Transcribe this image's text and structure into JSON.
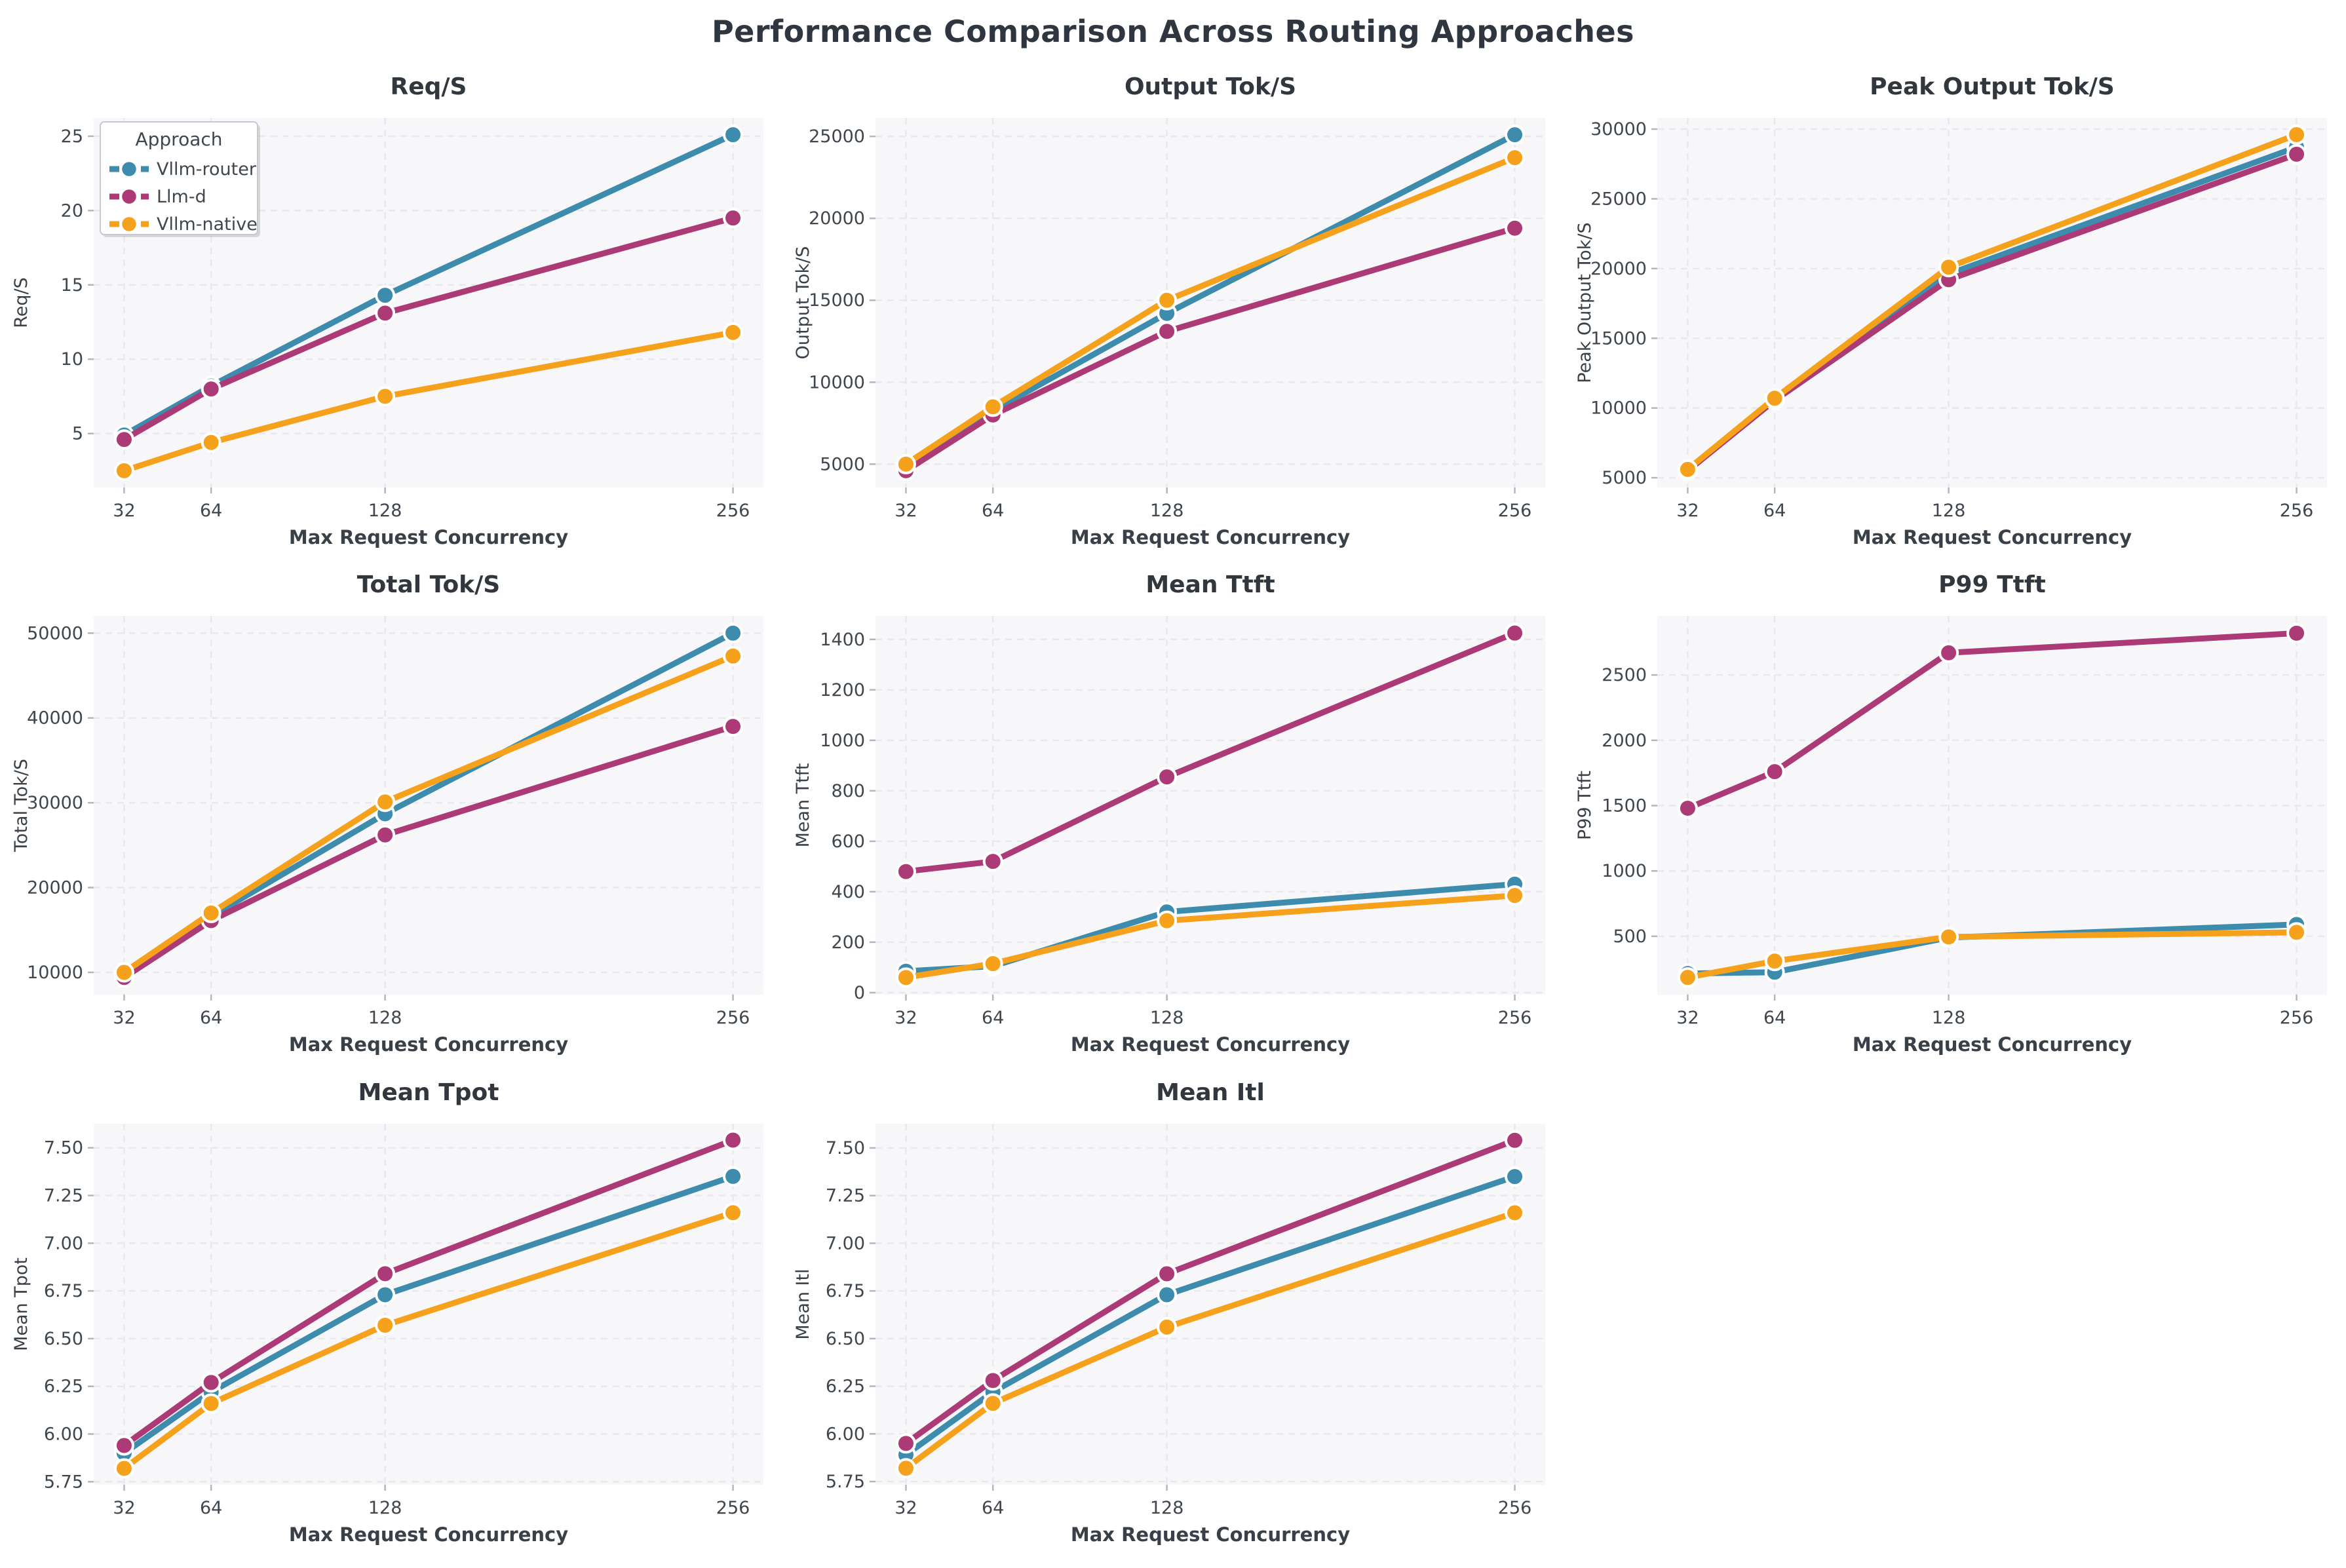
{
  "suptitle": "Performance Comparison Across Routing Approaches",
  "style": {
    "figure_bg": "#ffffff",
    "plot_bg": "#f7f7f9",
    "grid_color": "#e9e9ed",
    "tick_mark_color": "#b2b7bd",
    "title_color": "#31373d",
    "tick_text_color": "#3f464d",
    "label_text_color": "#3a4047",
    "legend_border": "#c6cad0",
    "legend_bg": "#ffffff"
  },
  "series_meta": [
    {
      "name": "Vllm-router",
      "color": "#3d8bad"
    },
    {
      "name": "Llm-d",
      "color": "#ab3a76"
    },
    {
      "name": "Vllm-native",
      "color": "#f5a11c"
    }
  ],
  "legend": {
    "title": "Approach",
    "chart_index": 0
  },
  "x_label": "Max Request Concurrency",
  "x_ticks": [
    32,
    64,
    128,
    256
  ],
  "x_lim": [
    20.8,
    267.2
  ],
  "chart_data": [
    {
      "type": "line",
      "title": "Req/S",
      "ylabel": "Req/S",
      "xlabel": "Max Request Concurrency",
      "x": [
        32,
        64,
        128,
        256
      ],
      "ylim": [
        1.37,
        26.23
      ],
      "yticks": [
        5,
        10,
        15,
        20,
        25
      ],
      "ydecimals": 0,
      "series": [
        {
          "name": "Vllm-router",
          "values": [
            4.9,
            8.2,
            14.3,
            25.1
          ]
        },
        {
          "name": "Llm-d",
          "values": [
            4.6,
            8.0,
            13.1,
            19.5
          ]
        },
        {
          "name": "Vllm-native",
          "values": [
            2.5,
            4.4,
            7.5,
            11.8
          ]
        }
      ]
    },
    {
      "type": "line",
      "title": "Output Tok/S",
      "ylabel": "Output Tok/S",
      "xlabel": "Max Request Concurrency",
      "x": [
        32,
        64,
        128,
        256
      ],
      "ylim": [
        3575,
        26125
      ],
      "yticks": [
        5000,
        10000,
        15000,
        20000,
        25000
      ],
      "ydecimals": 0,
      "series": [
        {
          "name": "Vllm-router",
          "values": [
            4900,
            8250,
            14200,
            25100
          ]
        },
        {
          "name": "Llm-d",
          "values": [
            4600,
            8000,
            13100,
            19400
          ]
        },
        {
          "name": "Vllm-native",
          "values": [
            5000,
            8500,
            15000,
            23700
          ]
        }
      ]
    },
    {
      "type": "line",
      "title": "Peak Output Tok/S",
      "ylabel": "Peak Output Tok/S",
      "xlabel": "Max Request Concurrency",
      "x": [
        32,
        64,
        128,
        256
      ],
      "ylim": [
        4300,
        30800
      ],
      "yticks": [
        5000,
        10000,
        15000,
        20000,
        25000,
        30000
      ],
      "ydecimals": 0,
      "series": [
        {
          "name": "Vllm-router",
          "values": [
            5550,
            10600,
            19600,
            28700
          ]
        },
        {
          "name": "Llm-d",
          "values": [
            5500,
            10550,
            19200,
            28200
          ]
        },
        {
          "name": "Vllm-native",
          "values": [
            5600,
            10700,
            20100,
            29600
          ]
        }
      ]
    },
    {
      "type": "line",
      "title": "Total Tok/S",
      "ylabel": "Total Tok/S",
      "xlabel": "Max Request Concurrency",
      "x": [
        32,
        64,
        128,
        256
      ],
      "ylim": [
        7370,
        52030
      ],
      "yticks": [
        10000,
        20000,
        30000,
        40000,
        50000
      ],
      "ydecimals": 0,
      "series": [
        {
          "name": "Vllm-router",
          "values": [
            10000,
            16600,
            28700,
            50000
          ]
        },
        {
          "name": "Llm-d",
          "values": [
            9400,
            16100,
            26200,
            39000
          ]
        },
        {
          "name": "Vllm-native",
          "values": [
            10000,
            17000,
            30100,
            47300
          ]
        }
      ]
    },
    {
      "type": "line",
      "title": "Mean Ttft",
      "ylabel": "Mean Ttft",
      "xlabel": "Max Request Concurrency",
      "x": [
        32,
        64,
        128,
        256
      ],
      "ylim": [
        -8,
        1493
      ],
      "yticks": [
        0,
        200,
        400,
        600,
        800,
        1000,
        1200,
        1400
      ],
      "ydecimals": 0,
      "series": [
        {
          "name": "Vllm-router",
          "values": [
            85,
            105,
            320,
            430
          ]
        },
        {
          "name": "Llm-d",
          "values": [
            480,
            520,
            855,
            1425
          ]
        },
        {
          "name": "Vllm-native",
          "values": [
            60,
            115,
            285,
            385
          ]
        }
      ]
    },
    {
      "type": "line",
      "title": "P99 Ttft",
      "ylabel": "P99 Ttft",
      "xlabel": "Max Request Concurrency",
      "x": [
        32,
        64,
        128,
        256
      ],
      "ylim": [
        53,
        2952
      ],
      "yticks": [
        500,
        1000,
        1500,
        2000,
        2500
      ],
      "ydecimals": 0,
      "series": [
        {
          "name": "Vllm-router",
          "values": [
            215,
            225,
            490,
            590
          ]
        },
        {
          "name": "Llm-d",
          "values": [
            1480,
            1760,
            2670,
            2820
          ]
        },
        {
          "name": "Vllm-native",
          "values": [
            185,
            310,
            495,
            530
          ]
        }
      ]
    },
    {
      "type": "line",
      "title": "Mean Tpot",
      "ylabel": "Mean Tpot",
      "xlabel": "Max Request Concurrency",
      "x": [
        32,
        64,
        128,
        256
      ],
      "ylim": [
        5.734,
        7.626
      ],
      "yticks": [
        5.75,
        6.0,
        6.25,
        6.5,
        6.75,
        7.0,
        7.25,
        7.5
      ],
      "ydecimals": 2,
      "series": [
        {
          "name": "Vllm-router",
          "values": [
            5.9,
            6.22,
            6.73,
            7.35
          ]
        },
        {
          "name": "Llm-d",
          "values": [
            5.94,
            6.27,
            6.84,
            7.54
          ]
        },
        {
          "name": "Vllm-native",
          "values": [
            5.82,
            6.16,
            6.57,
            7.16
          ]
        }
      ]
    },
    {
      "type": "line",
      "title": "Mean Itl",
      "ylabel": "Mean Itl",
      "xlabel": "Max Request Concurrency",
      "x": [
        32,
        64,
        128,
        256
      ],
      "ylim": [
        5.733,
        7.627
      ],
      "yticks": [
        5.75,
        6.0,
        6.25,
        6.5,
        6.75,
        7.0,
        7.25,
        7.5
      ],
      "ydecimals": 2,
      "series": [
        {
          "name": "Vllm-router",
          "values": [
            5.89,
            6.22,
            6.73,
            7.35
          ]
        },
        {
          "name": "Llm-d",
          "values": [
            5.95,
            6.28,
            6.84,
            7.54
          ]
        },
        {
          "name": "Vllm-native",
          "values": [
            5.82,
            6.16,
            6.56,
            7.16
          ]
        }
      ]
    }
  ]
}
